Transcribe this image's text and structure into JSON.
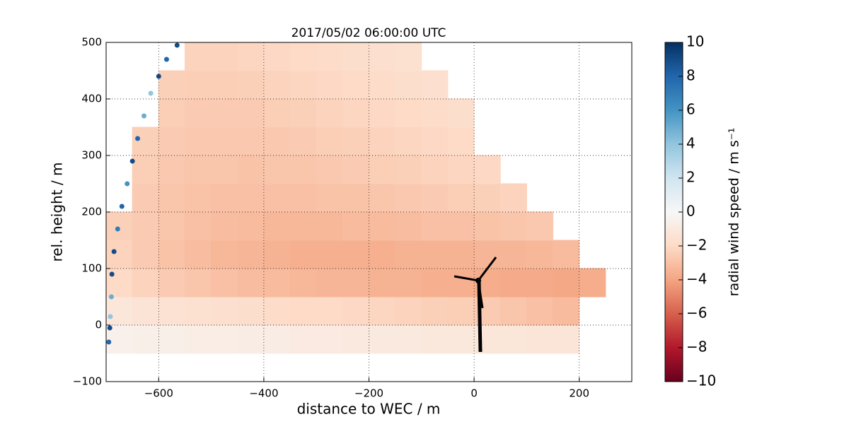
{
  "chart_data": {
    "type": "scatter",
    "title": "2017/05/02 06:00:00 UTC",
    "x_label": "distance to WEC / m",
    "y_label": "rel. height / m",
    "colorbar_label": "radial wind speed / m s⁻¹",
    "xlim": [
      -700,
      300
    ],
    "ylim": [
      -100,
      500
    ],
    "xticks": [
      {
        "value": -600,
        "label": "−600"
      },
      {
        "value": -400,
        "label": "−400"
      },
      {
        "value": -200,
        "label": "−200"
      },
      0,
      200
    ],
    "yticks": [
      {
        "value": -100,
        "label": "−100"
      },
      0,
      100,
      200,
      300,
      400,
      500
    ],
    "clim": [
      -10,
      10
    ],
    "cticks": [
      {
        "value": -10,
        "label": "−10"
      },
      {
        "value": -8,
        "label": "−8"
      },
      {
        "value": -6,
        "label": "−6"
      },
      {
        "value": -4,
        "label": "−4"
      },
      {
        "value": -2,
        "label": "−2"
      },
      0,
      2,
      4,
      6,
      8,
      10
    ],
    "colormap": [
      "#67001f",
      "#b2182b",
      "#d6604d",
      "#f4a582",
      "#fddbc7",
      "#f7f7f7",
      "#d1e5f0",
      "#92c5de",
      "#4393c3",
      "#2166ac",
      "#053061"
    ],
    "grid": true,
    "rows": [
      {
        "y": -25,
        "x": [
          -675,
          -625,
          -575,
          -525,
          -475,
          -425,
          -375,
          -325,
          -275,
          -225,
          -175,
          -125,
          -75,
          -25,
          25,
          75,
          125,
          175
        ],
        "values": [
          -0.5,
          -0.6,
          -0.6,
          -0.7,
          -0.7,
          -0.8,
          -0.8,
          -0.9,
          -0.9,
          -1,
          -1,
          -1,
          -1.1,
          -1.1,
          -1.2,
          -1.2,
          -1.3,
          -1.3
        ]
      },
      {
        "y": 25,
        "x": [
          -675,
          -625,
          -575,
          -525,
          -475,
          -425,
          -375,
          -325,
          -275,
          -225,
          -175,
          -125,
          -75,
          -25,
          25,
          75,
          125,
          175
        ],
        "values": [
          -1.2,
          -1.4,
          -1.5,
          -1.6,
          -1.7,
          -1.8,
          -1.9,
          -2,
          -2,
          -2.1,
          -2.2,
          -2.3,
          -2.4,
          -2.5,
          -2.6,
          -2.8,
          -3,
          -3.2
        ]
      },
      {
        "y": 75,
        "x": [
          -675,
          -625,
          -575,
          -525,
          -475,
          -425,
          -375,
          -325,
          -275,
          -225,
          -175,
          -125,
          -75,
          -25,
          25,
          75,
          125,
          175,
          225
        ],
        "values": [
          -2,
          -2.3,
          -2.6,
          -2.8,
          -3,
          -3.1,
          -3.2,
          -3.3,
          -3.4,
          -3.4,
          -3.5,
          -3.5,
          -3.6,
          -3.6,
          -3.7,
          -3.8,
          -3.8,
          -3.9,
          -3.7
        ]
      },
      {
        "y": 125,
        "x": [
          -675,
          -625,
          -575,
          -525,
          -475,
          -425,
          -375,
          -325,
          -275,
          -225,
          -175,
          -125,
          -75,
          -25,
          25,
          75,
          125,
          175
        ],
        "values": [
          -2.3,
          -2.6,
          -2.9,
          -3.1,
          -3.3,
          -3.4,
          -3.5,
          -3.6,
          -3.6,
          -3.6,
          -3.6,
          -3.5,
          -3.5,
          -3.5,
          -3.4,
          -3.4,
          -3.3,
          -3.2
        ]
      },
      {
        "y": 175,
        "x": [
          -675,
          -625,
          -575,
          -525,
          -475,
          -425,
          -375,
          -325,
          -275,
          -225,
          -175,
          -125,
          -75,
          -25,
          25,
          75,
          125
        ],
        "values": [
          -2.4,
          -2.6,
          -2.8,
          -3,
          -3.1,
          -3.2,
          -3.3,
          -3.3,
          -3.3,
          -3.2,
          -3.2,
          -3.1,
          -3,
          -3,
          -2.9,
          -2.8,
          -2.7
        ]
      },
      {
        "y": 225,
        "x": [
          -625,
          -575,
          -525,
          -475,
          -425,
          -375,
          -325,
          -275,
          -225,
          -175,
          -125,
          -75,
          -25,
          25,
          75
        ],
        "values": [
          -2.6,
          -2.8,
          -2.9,
          -3,
          -3,
          -3,
          -3,
          -2.9,
          -2.9,
          -2.8,
          -2.7,
          -2.6,
          -2.5,
          -2.4,
          -2.3
        ]
      },
      {
        "y": 275,
        "x": [
          -625,
          -575,
          -525,
          -475,
          -425,
          -375,
          -325,
          -275,
          -225,
          -175,
          -125,
          -75,
          -25,
          25
        ],
        "values": [
          -2.5,
          -2.7,
          -2.8,
          -2.8,
          -2.9,
          -2.8,
          -2.8,
          -2.7,
          -2.6,
          -2.5,
          -2.4,
          -2.3,
          -2.2,
          -2.1
        ]
      },
      {
        "y": 325,
        "x": [
          -625,
          -575,
          -525,
          -475,
          -425,
          -375,
          -325,
          -275,
          -225,
          -175,
          -125,
          -75,
          -25
        ],
        "values": [
          -2.4,
          -2.6,
          -2.7,
          -2.7,
          -2.7,
          -2.7,
          -2.6,
          -2.5,
          -2.4,
          -2.3,
          -2.2,
          -2.1,
          -2
        ]
      },
      {
        "y": 375,
        "x": [
          -575,
          -525,
          -475,
          -425,
          -375,
          -325,
          -275,
          -225,
          -175,
          -125,
          -75,
          -25
        ],
        "values": [
          -2.5,
          -2.6,
          -2.6,
          -2.6,
          -2.5,
          -2.4,
          -2.3,
          -2.2,
          -2.1,
          -2,
          -1.9,
          -1.8
        ]
      },
      {
        "y": 425,
        "x": [
          -575,
          -525,
          -475,
          -425,
          -375,
          -325,
          -275,
          -225,
          -175,
          -125,
          -75
        ],
        "values": [
          -2.4,
          -2.5,
          -2.5,
          -2.4,
          -2.3,
          -2.2,
          -2.1,
          -2,
          -1.9,
          -1.8,
          -1.7
        ]
      },
      {
        "y": 475,
        "x": [
          -525,
          -475,
          -425,
          -375,
          -325,
          -275,
          -225,
          -175,
          -125
        ],
        "values": [
          -2.3,
          -2.3,
          -2.2,
          -2.1,
          -2,
          -1.9,
          -1.8,
          -1.7,
          -1.6
        ]
      }
    ],
    "edge": {
      "x": [
        -695,
        -693,
        -692,
        -690,
        -689,
        -685,
        -678,
        -670,
        -660,
        -650,
        -640,
        -628,
        -615,
        -600,
        -585,
        -565
      ],
      "y": [
        -30,
        -5,
        15,
        50,
        90,
        130,
        170,
        210,
        250,
        290,
        330,
        370,
        410,
        440,
        470,
        495
      ],
      "values": [
        8,
        9,
        4,
        5,
        9,
        9,
        7,
        8,
        6,
        9,
        8,
        5,
        4,
        9,
        8,
        9
      ]
    }
  }
}
